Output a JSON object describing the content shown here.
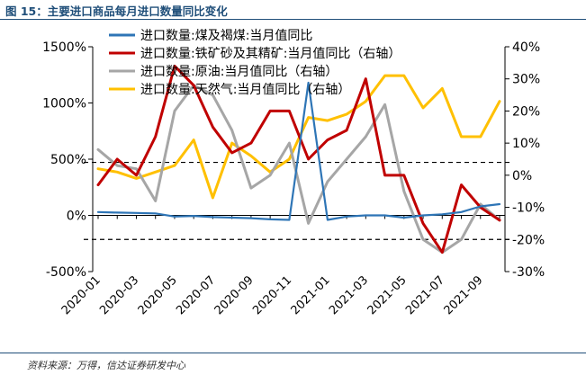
{
  "figure": {
    "title": "图 15：主要进口商品每月进口数量同比变化",
    "source": "资料来源：万得，信达证券研发中心"
  },
  "chart_data": {
    "type": "line",
    "x": [
      "2020-01",
      "2020-02",
      "2020-03",
      "2020-04",
      "2020-05",
      "2020-06",
      "2020-07",
      "2020-08",
      "2020-09",
      "2020-10",
      "2020-11",
      "2020-12",
      "2021-01",
      "2021-02",
      "2021-03",
      "2021-04",
      "2021-05",
      "2021-06",
      "2021-07",
      "2021-08",
      "2021-09",
      "2021-10"
    ],
    "x_tick_labels": [
      "2020-01",
      "2020-03",
      "2020-05",
      "2020-07",
      "2020-09",
      "2020-11",
      "2021-01",
      "2021-03",
      "2021-05",
      "2021-07",
      "2021-09"
    ],
    "left_axis": {
      "ylim": [
        -500,
        1500
      ],
      "ticks": [
        -500,
        0,
        500,
        1000,
        1500
      ],
      "tick_labels": [
        "-500%",
        "0%",
        "500%",
        "1000%",
        "1500%"
      ]
    },
    "right_axis": {
      "ylim": [
        -30,
        40
      ],
      "ticks": [
        -30,
        -20,
        -10,
        0,
        10,
        20,
        30,
        40
      ],
      "tick_labels": [
        "-30%",
        "-20%",
        "-10%",
        "0%",
        "10%",
        "20%",
        "30%",
        "40%"
      ]
    },
    "reference_lines": [
      {
        "axis": "right",
        "value": 4,
        "style": "dashed"
      },
      {
        "axis": "right",
        "value": -20,
        "style": "dashed"
      }
    ],
    "series": [
      {
        "name": "进口数量:煤及褐煤:当月值同比",
        "axis": "left",
        "color": "#2e75b6",
        "values": [
          30,
          25,
          22,
          18,
          -10,
          -5,
          -15,
          -20,
          -25,
          -35,
          -40,
          1180,
          -40,
          -10,
          0,
          0,
          -20,
          0,
          10,
          30,
          80,
          100
        ]
      },
      {
        "name": "进口数量:铁矿砂及其精矿:当月值同比（右轴）",
        "axis": "right",
        "color": "#c00000",
        "values": [
          -3,
          5,
          0,
          12,
          34,
          28,
          15,
          7,
          10,
          20,
          20,
          5,
          11,
          14,
          30,
          0,
          0,
          -15,
          -24,
          -3,
          -10,
          -14
        ]
      },
      {
        "name": "进口数量:原油:当月值同比（右轴）",
        "axis": "right",
        "color": "#a6a6a6",
        "values": [
          8,
          3,
          2,
          -8,
          20,
          28,
          25,
          14,
          -4,
          0,
          10,
          -15,
          -2,
          5,
          12,
          22,
          -5,
          -20,
          -24,
          -20,
          -9,
          -14
        ]
      },
      {
        "name": "进口数量:天然气:当月值同比（右轴）",
        "axis": "right",
        "color": "#ffc000",
        "values": [
          2,
          1,
          -1,
          1,
          3,
          11,
          -7,
          10,
          6,
          1,
          5,
          18,
          17,
          19,
          23,
          31,
          31,
          21,
          27,
          12,
          12,
          23
        ]
      }
    ]
  }
}
